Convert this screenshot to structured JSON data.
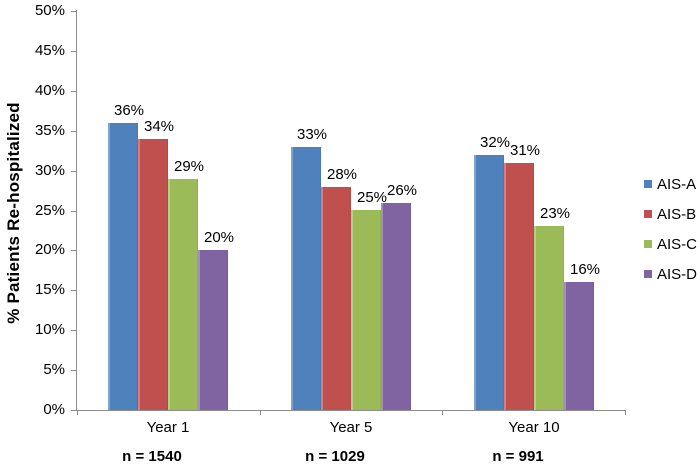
{
  "chart_data": {
    "type": "bar",
    "title": "",
    "ylabel": "% Patients Re-hospitalized",
    "xlabel": "",
    "ylim": [
      0,
      50
    ],
    "ytick_labels": [
      "0%",
      "5%",
      "10%",
      "15%",
      "20%",
      "25%",
      "30%",
      "35%",
      "40%",
      "45%",
      "50%"
    ],
    "grid": false,
    "legend_position": "right",
    "categories": [
      "Year 1",
      "Year 5",
      "Year 10"
    ],
    "category_counts": [
      "n = 1540",
      "n = 1029",
      "n = 991"
    ],
    "series": [
      {
        "name": "AIS-A",
        "color": "#4F81BD",
        "values": [
          36,
          33,
          32
        ],
        "labels": [
          "36%",
          "33%",
          "32%"
        ]
      },
      {
        "name": "AIS-B",
        "color": "#C0504D",
        "values": [
          34,
          28,
          31
        ],
        "labels": [
          "34%",
          "28%",
          "31%"
        ]
      },
      {
        "name": "AIS-C",
        "color": "#9BBB59",
        "values": [
          29,
          25,
          23
        ],
        "labels": [
          "29%",
          "25%",
          "23%"
        ]
      },
      {
        "name": "AIS-D",
        "color": "#8064A2",
        "values": [
          20,
          26,
          16
        ],
        "labels": [
          "20%",
          "26%",
          "16%"
        ]
      }
    ],
    "colors": {
      "axis": "#8C8C8C",
      "text": "#000000",
      "background": "#FFFFFF"
    }
  }
}
